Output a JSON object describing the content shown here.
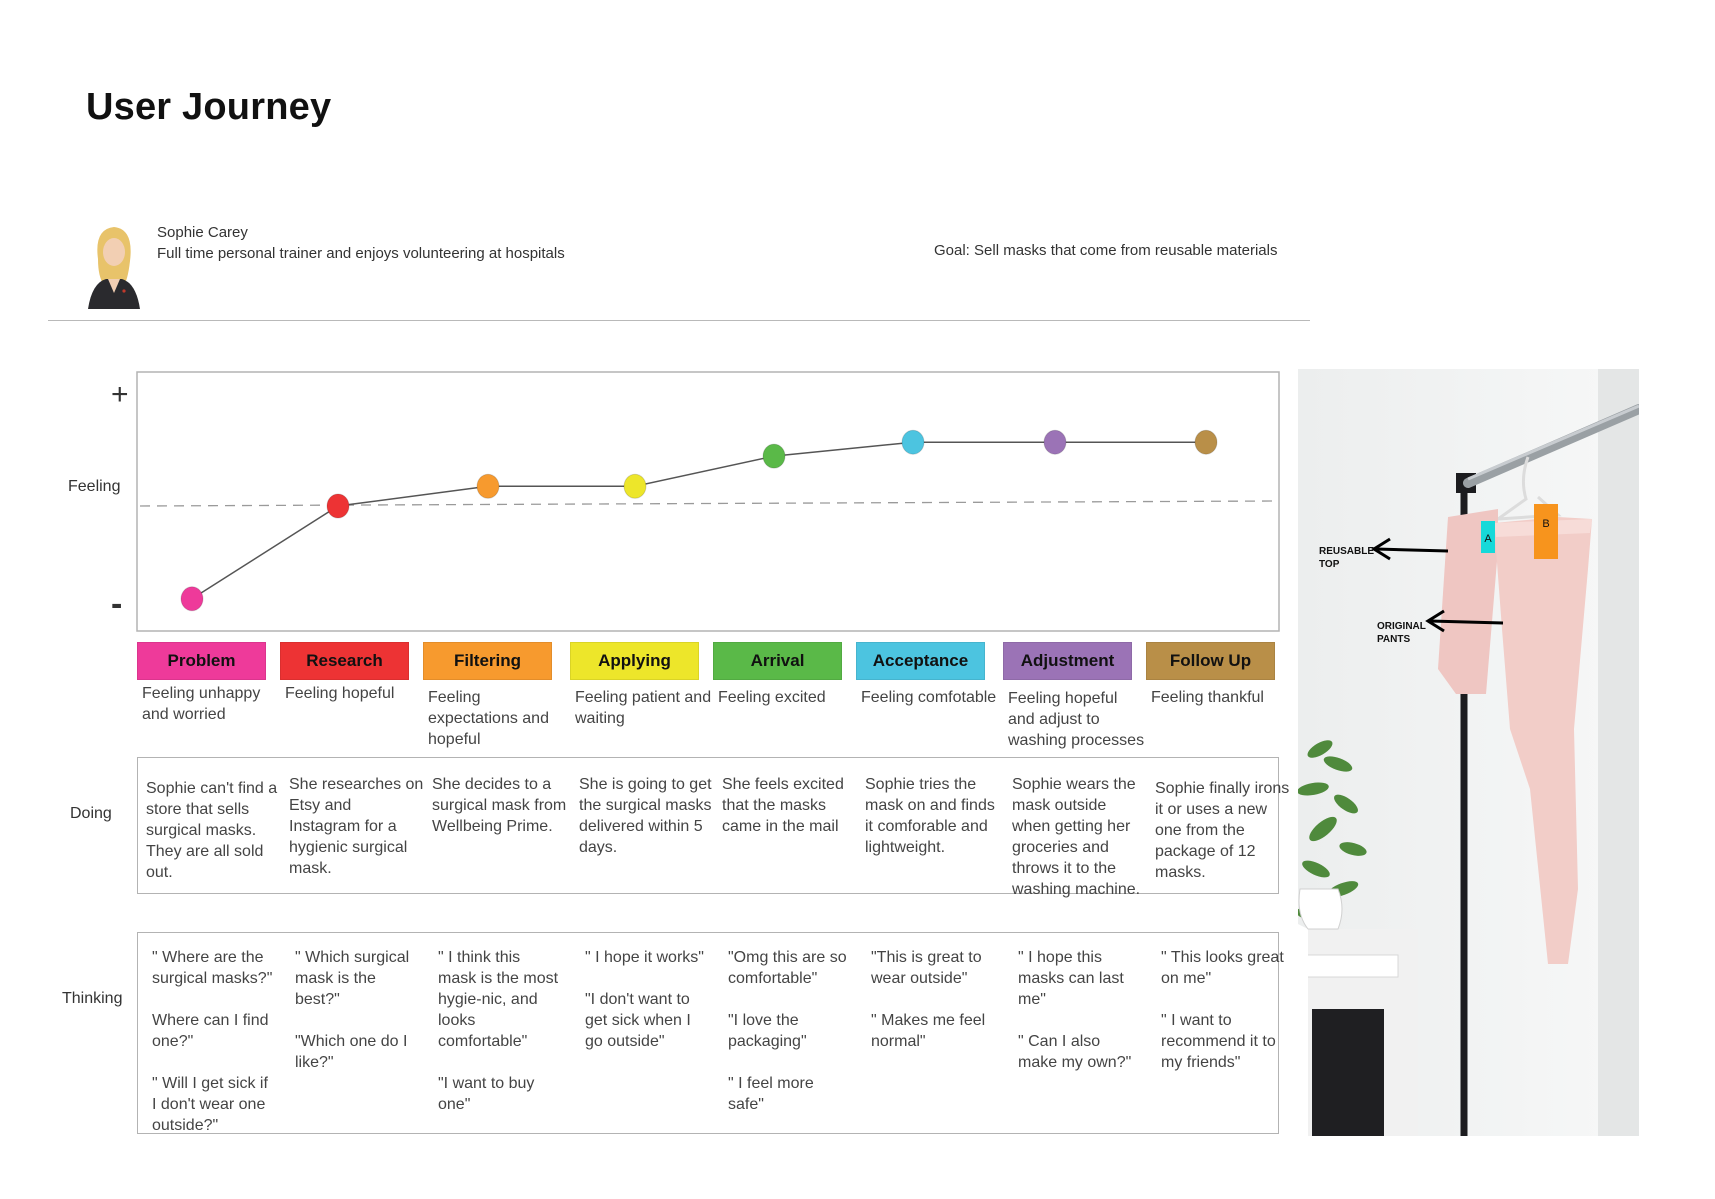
{
  "title": "User Journey",
  "persona": {
    "name": "Sophie Carey",
    "description": "Full time personal trainer and enjoys volunteering at hospitals",
    "goal": "Goal: Sell masks that come from reusable materials"
  },
  "row_labels": {
    "feeling": "Feeling",
    "doing": "Doing",
    "thinking": "Thinking"
  },
  "axis": {
    "plus": "+",
    "minus": "-"
  },
  "stages": [
    {
      "name": "Problem",
      "color": "#ee3a9a",
      "feeling_score": -0.8,
      "feeling": "Feeling unhappy\nand worried",
      "doing": "Sophie can't find a store that sells surgical masks. They are all sold out.",
      "thinking": "\" Where are the surgical masks?\"\n\nWhere can I find one?\"\n\n\" Will I get sick if I don't wear one outside?\""
    },
    {
      "name": "Research",
      "color": "#ed3334",
      "feeling_score": 0.0,
      "feeling": "Feeling hopeful",
      "doing": "She researches on Etsy and Instagram for a hygienic surgical mask.",
      "thinking": "\" Which surgical mask is the best?\"\n\n\"Which one do I like?\""
    },
    {
      "name": "Filtering",
      "color": "#f79a2e",
      "feeling_score": 0.17,
      "feeling": "Feeling expectations and hopeful",
      "doing": "She decides to a surgical mask from Wellbeing Prime.",
      "thinking": "\" I think this mask is the most hygie-nic, and looks comfortable\"\n\n\"I want to buy one\""
    },
    {
      "name": "Applying",
      "color": "#ede62a",
      "feeling_score": 0.17,
      "feeling": "Feeling patient and waiting",
      "doing": "She is going to get the surgical masks delivered within 5 days.",
      "thinking": "\" I hope it works\"\n\n\"I don't want to get sick when I go outside\""
    },
    {
      "name": "Arrival",
      "color": "#5ab948",
      "feeling_score": 0.43,
      "feeling": "Feeling excited",
      "doing": "She feels excited that the masks came in the mail",
      "thinking": "\"Omg this are so comfortable\"\n\n\"I love the\n packaging\"\n\n\" I feel more safe\""
    },
    {
      "name": "Acceptance",
      "color": "#4cc4e0",
      "feeling_score": 0.55,
      "feeling": "Feeling comfotable",
      "doing": "Sophie tries the mask on and finds it comforable and lightweight.",
      "thinking": "\"This is great to wear outside\"\n\n\" Makes me feel normal\""
    },
    {
      "name": "Adjustment",
      "color": "#9b73b6",
      "feeling_score": 0.55,
      "feeling": "Feeling hopeful and adjust to washing processes",
      "doing": "Sophie wears the mask outside when getting her groceries and throws it to the washing machine.",
      "thinking": "\" I hope this masks can last me\"\n\n\" Can I also make my own?\""
    },
    {
      "name": "Follow Up",
      "color": "#b98f48",
      "feeling_score": 0.55,
      "feeling": "Feeling thankful",
      "doing": "Sophie finally irons it or uses a new one from the package of 12 masks.",
      "thinking": "\" This looks great on me\"\n\n\" I want to recommend it to my friends\""
    }
  ],
  "photo": {
    "tag_a": "A",
    "tag_b": "B",
    "label_top": "REUSABLE\nTOP",
    "label_pants": "ORIGINAL\nPANTS"
  }
}
